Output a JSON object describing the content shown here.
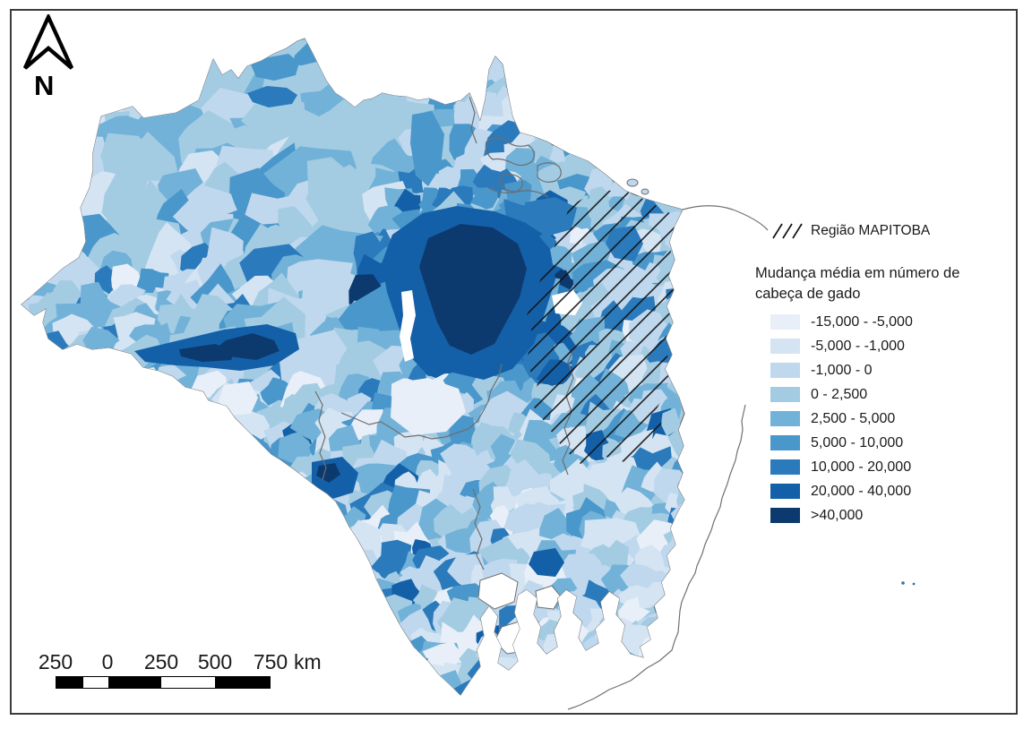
{
  "figure": {
    "type": "choropleth-map-brazil-cattle-change",
    "north_label": "N",
    "legend": {
      "region_item": {
        "label": "Região MAPITOBA",
        "swatch": "diagonal-hatch"
      },
      "title": [
        "Mudança média em número de",
        "cabeça de gado"
      ],
      "classes": [
        {
          "range": "-15,000 - -5,000",
          "color": "#e8eff8"
        },
        {
          "range": "-5,000 - -1,000",
          "color": "#d4e4f3"
        },
        {
          "range": "-1,000 - 0",
          "color": "#bfd8ee"
        },
        {
          "range": "0 - 2,500",
          "color": "#a3cce3"
        },
        {
          "range": "2,500 - 5,000",
          "color": "#72b2d8"
        },
        {
          "range": "5,000 - 10,000",
          "color": "#4a97cb"
        },
        {
          "range": "10,000 - 20,000",
          "color": "#2b7abc"
        },
        {
          "range": "20,000 - 40,000",
          "color": "#1460a8"
        },
        {
          "range": ">40,000",
          "color": "#0d3a6e"
        }
      ]
    },
    "scale_bar": {
      "tick_labels": [
        "250",
        "0",
        "250",
        "500",
        "750"
      ],
      "unit": "km"
    },
    "map_colors": {
      "outline": "#6b6b6b",
      "coast": "#707070",
      "state_border": "#6e6e6e",
      "hatch_line": "#111111",
      "background": "#ffffff"
    }
  }
}
